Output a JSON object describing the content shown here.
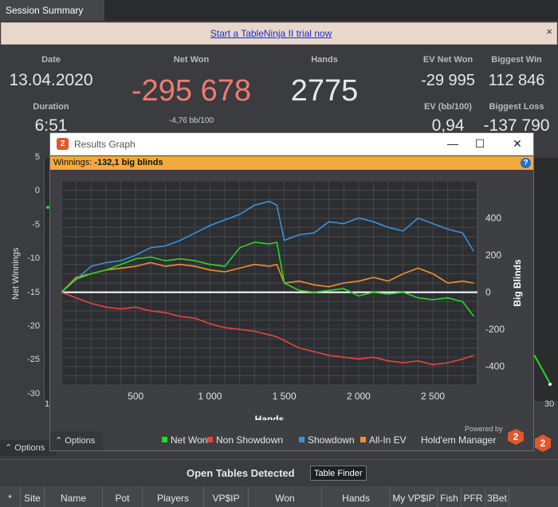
{
  "tab": {
    "label": "Session Summary"
  },
  "banner": {
    "link": "Start a TableNinja II trial now",
    "close": "×"
  },
  "stats": {
    "date_label": "Date",
    "date": "13.04.2020",
    "duration_label": "Duration",
    "duration": "6:51",
    "net_won_label": "Net Won",
    "net_won": "-295 678",
    "net_won_bb": "-4,76 bb/100",
    "hands_label": "Hands",
    "hands": "2775",
    "ev_net_won_label": "EV Net Won",
    "ev_net_won": "-29 995",
    "ev_bb_label": "EV (bb/100)",
    "ev_bb": "0,94",
    "biggest_win_label": "Biggest Win",
    "biggest_win": "112 846",
    "biggest_loss_label": "Biggest Loss",
    "biggest_loss": "-137 790"
  },
  "bg_chart": {
    "ylabel": "Net Winnings",
    "yticks": [
      "5",
      "0",
      "-5",
      "-10",
      "-15",
      "-20",
      "-25",
      "-30"
    ],
    "xtick_left": "1",
    "xtick_right": "30",
    "options": "Options"
  },
  "bottom": {
    "title": "Open Tables Detected",
    "finder_button": "Table Finder",
    "columns": [
      "*",
      "Site",
      "Name",
      "Pot",
      "Players",
      "VP$IP",
      "Won",
      "Hands",
      "My VP$IP",
      "Fish",
      "PFR",
      "3Bet"
    ]
  },
  "window": {
    "title": "Results Graph",
    "logo": "2",
    "controls": {
      "minimize": "—",
      "maximize": "☐",
      "close": "✕"
    },
    "winnings_label": "Winnings:",
    "winnings_value": "-132,1 big blinds",
    "help": "?",
    "options": "Options",
    "powered_by": "Powered by",
    "brand": "Hold'em Manager",
    "brand_logo": "2"
  },
  "colors": {
    "net_won": "#29d629",
    "non_showdown": "#e8423e",
    "showdown": "#3a90dc",
    "all_in_ev": "#f0902e",
    "zero_line": "#ffffff"
  },
  "chart_data": {
    "type": "line",
    "xlabel": "Hands",
    "ylabel": "Big Blinds",
    "xlim": [
      0,
      2800
    ],
    "ylim": [
      -500,
      600
    ],
    "xticks": [
      "500",
      "1 000",
      "1 500",
      "2 000",
      "2 500"
    ],
    "yticks": [
      "400",
      "200",
      "0",
      "-200",
      "-400"
    ],
    "grid": true,
    "legend_position": "bottom",
    "x": [
      0,
      100,
      200,
      300,
      400,
      500,
      600,
      700,
      800,
      900,
      1000,
      1100,
      1200,
      1300,
      1400,
      1450,
      1500,
      1600,
      1700,
      1800,
      1900,
      2000,
      2100,
      2200,
      2300,
      2400,
      2500,
      2600,
      2700,
      2775
    ],
    "series": [
      {
        "name": "Net Won",
        "values": [
          0,
          70,
          100,
          120,
          150,
          180,
          190,
          170,
          180,
          170,
          150,
          140,
          240,
          270,
          260,
          270,
          50,
          10,
          0,
          10,
          20,
          -20,
          0,
          -10,
          0,
          -30,
          -40,
          -30,
          -50,
          -130
        ]
      },
      {
        "name": "Non Showdown",
        "values": [
          0,
          -30,
          -60,
          -80,
          -90,
          -80,
          -100,
          -110,
          -130,
          -140,
          -170,
          -190,
          -200,
          -210,
          -230,
          -240,
          -260,
          -300,
          -320,
          -340,
          -350,
          -360,
          -350,
          -370,
          -380,
          -370,
          -390,
          -380,
          -360,
          -340
        ]
      },
      {
        "name": "Showdown",
        "values": [
          0,
          70,
          140,
          160,
          170,
          200,
          240,
          250,
          280,
          320,
          360,
          390,
          420,
          470,
          490,
          470,
          280,
          310,
          320,
          380,
          370,
          400,
          380,
          350,
          330,
          400,
          370,
          340,
          320,
          220
        ]
      },
      {
        "name": "All-In EV",
        "values": [
          0,
          80,
          100,
          120,
          130,
          140,
          160,
          140,
          150,
          140,
          120,
          110,
          130,
          150,
          140,
          150,
          50,
          60,
          40,
          30,
          50,
          60,
          80,
          60,
          100,
          130,
          100,
          50,
          60,
          50
        ]
      }
    ]
  }
}
